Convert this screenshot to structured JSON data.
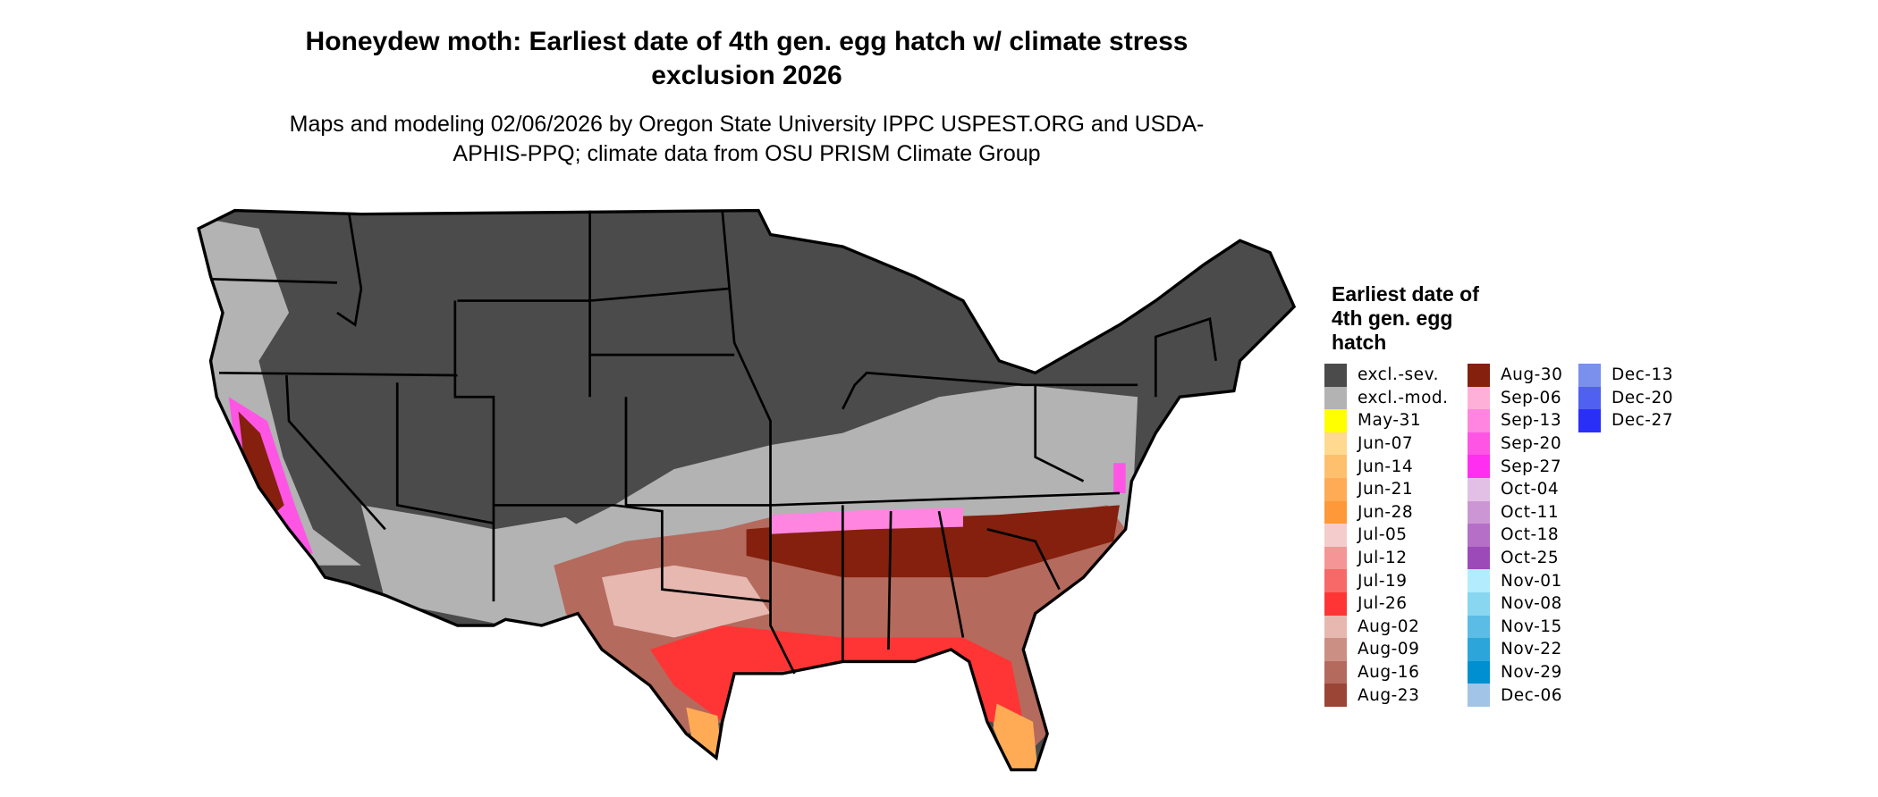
{
  "title": "Honeydew moth: Earliest date of 4th gen. egg hatch w/ climate stress exclusion 2026",
  "subtitle": "Maps and modeling 02/06/2026 by Oregon State University IPPC USPEST.ORG and USDA-APHIS-PPQ; climate data from OSU PRISM Climate Group",
  "legend": {
    "title": "Earliest date of 4th gen. egg hatch",
    "columns": [
      [
        {
          "label": "excl.-sev.",
          "color": "#4b4b4b"
        },
        {
          "label": "excl.-mod.",
          "color": "#b3b3b3"
        },
        {
          "label": "May-31",
          "color": "#ffff00"
        },
        {
          "label": "Jun-07",
          "color": "#ffd98f"
        },
        {
          "label": "Jun-14",
          "color": "#ffc06e"
        },
        {
          "label": "Jun-21",
          "color": "#ffab55"
        },
        {
          "label": "Jun-28",
          "color": "#ff9838"
        },
        {
          "label": "Jul-05",
          "color": "#f5cccc"
        },
        {
          "label": "Jul-12",
          "color": "#f59595"
        },
        {
          "label": "Jul-19",
          "color": "#f76868"
        },
        {
          "label": "Jul-26",
          "color": "#ff3535"
        },
        {
          "label": "Aug-02",
          "color": "#e6b8b0"
        },
        {
          "label": "Aug-09",
          "color": "#cc8f84"
        },
        {
          "label": "Aug-16",
          "color": "#b46a5d"
        },
        {
          "label": "Aug-23",
          "color": "#9a4535"
        }
      ],
      [
        {
          "label": "Aug-30",
          "color": "#84200d"
        },
        {
          "label": "Sep-06",
          "color": "#ffb0d8"
        },
        {
          "label": "Sep-13",
          "color": "#ff85e0"
        },
        {
          "label": "Sep-20",
          "color": "#ff55e5"
        },
        {
          "label": "Sep-27",
          "color": "#ff2ef0"
        },
        {
          "label": "Oct-04",
          "color": "#e2c0e6"
        },
        {
          "label": "Oct-11",
          "color": "#cc96d4"
        },
        {
          "label": "Oct-18",
          "color": "#b56fc6"
        },
        {
          "label": "Oct-25",
          "color": "#9c4ab8"
        },
        {
          "label": "Nov-01",
          "color": "#b3ecfc"
        },
        {
          "label": "Nov-08",
          "color": "#88d6f0"
        },
        {
          "label": "Nov-15",
          "color": "#5bbde6"
        },
        {
          "label": "Nov-22",
          "color": "#2ca6da"
        },
        {
          "label": "Nov-29",
          "color": "#0090d2"
        },
        {
          "label": "Dec-06",
          "color": "#a2c4e6"
        }
      ],
      [
        {
          "label": "Dec-13",
          "color": "#7a90ec"
        },
        {
          "label": "Dec-20",
          "color": "#5060f0"
        },
        {
          "label": "Dec-27",
          "color": "#2a2ff8"
        }
      ]
    ]
  }
}
